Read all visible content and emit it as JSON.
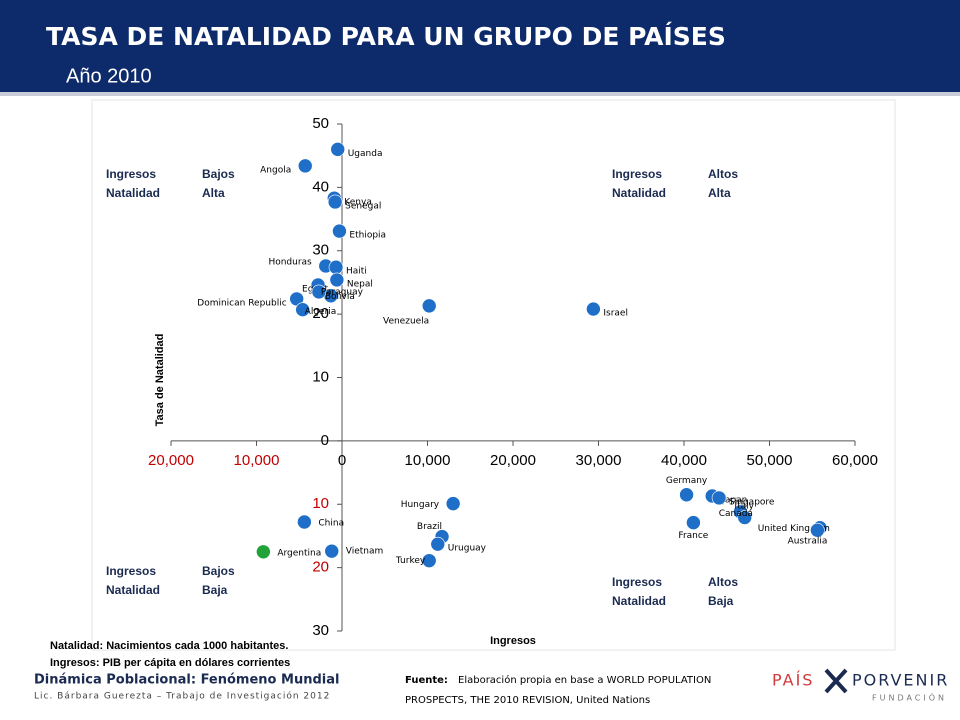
{
  "header": {
    "title": "TASA DE NATALIDAD PARA UN GRUPO DE PAÍSES",
    "subtitle": "Año 2010"
  },
  "chart_data": {
    "type": "scatter",
    "xlabel": "Ingresos",
    "ylabel": "Tasa de Natalidad",
    "xlim": [
      -20000,
      60000
    ],
    "ylim": [
      -30,
      50
    ],
    "xticks": [
      {
        "value": -20000,
        "label": "20,000",
        "color": "#c00000"
      },
      {
        "value": -10000,
        "label": "10,000",
        "color": "#c00000"
      },
      0,
      {
        "value": 10000,
        "label": "10,000"
      },
      {
        "value": 20000,
        "label": "20,000"
      },
      {
        "value": 30000,
        "label": "30,000"
      },
      {
        "value": 40000,
        "label": "40,000"
      },
      {
        "value": 50000,
        "label": "50,000"
      },
      {
        "value": 60000,
        "label": "60,000"
      }
    ],
    "yticks": [
      {
        "value": -30,
        "label": "30"
      },
      {
        "value": -20,
        "label": "20",
        "color": "#c00000"
      },
      {
        "value": -10,
        "label": "10",
        "color": "#c00000"
      },
      0,
      10,
      20,
      30,
      40,
      50
    ],
    "color": "#1f6fc8",
    "points": [
      {
        "name": "Uganda",
        "x": -500,
        "y": 46
      },
      {
        "name": "Angola",
        "x": -4300,
        "y": 43.4
      },
      {
        "name": "Kenya",
        "x": -900,
        "y": 38.3
      },
      {
        "name": "Senegal",
        "x": -800,
        "y": 37.7
      },
      {
        "name": "Ethiopia",
        "x": -300,
        "y": 33.1
      },
      {
        "name": "Honduras",
        "x": -1900,
        "y": 27.6
      },
      {
        "name": "Haiti",
        "x": -700,
        "y": 27.4
      },
      {
        "name": "Nepal",
        "x": -600,
        "y": 25.4
      },
      {
        "name": "Egypt",
        "x": -2800,
        "y": 24.6
      },
      {
        "name": "Bolivia",
        "x": -1300,
        "y": 22.9
      },
      {
        "name": "Paraguay",
        "x": -2700,
        "y": 23.5
      },
      {
        "name": "Dominican Republic",
        "x": -5300,
        "y": 22.4
      },
      {
        "name": "Algeria",
        "x": -4600,
        "y": 20.7
      },
      {
        "name": "Venezuela",
        "x": 10200,
        "y": 21.3
      },
      {
        "name": "Israel",
        "x": 29400,
        "y": 20.8
      },
      {
        "name": "Hungary",
        "x": 13000,
        "y": -9.9
      },
      {
        "name": "China",
        "x": -4400,
        "y": -12.8
      },
      {
        "name": "Argentina",
        "x": -9200,
        "y": -17.5,
        "color": "#22a33a"
      },
      {
        "name": "Vietnam",
        "x": -1200,
        "y": -17.4
      },
      {
        "name": "Brazil",
        "x": 11700,
        "y": -15.1
      },
      {
        "name": "Uruguay",
        "x": 11200,
        "y": -16.3
      },
      {
        "name": "Turkey",
        "x": 10200,
        "y": -18.9
      },
      {
        "name": "Germany",
        "x": 40300,
        "y": -8.5
      },
      {
        "name": "Japan",
        "x": 43300,
        "y": -8.7
      },
      {
        "name": "Singapore",
        "x": 44100,
        "y": -9
      },
      {
        "name": "Italy",
        "x": 46600,
        "y": -11.2
      },
      {
        "name": "Canada",
        "x": 47100,
        "y": -12.1
      },
      {
        "name": "France",
        "x": 41100,
        "y": -12.9
      },
      {
        "name": "United Kingdom",
        "x": 55900,
        "y": -13.7
      },
      {
        "name": "Australia",
        "x": 55600,
        "y": -14.1
      }
    ],
    "quadrants": [
      [
        [
          "Ingresos",
          "Bajos"
        ],
        [
          "Natalidad",
          "Alta"
        ]
      ],
      [
        [
          "Ingresos",
          "Altos"
        ],
        [
          "Natalidad",
          "Alta"
        ]
      ],
      [
        [
          "Ingresos",
          "Bajos"
        ],
        [
          "Natalidad",
          "Baja"
        ]
      ],
      [
        [
          "Ingresos",
          "Altos"
        ],
        [
          "Natalidad",
          "Baja"
        ]
      ]
    ],
    "notes": [
      "Natalidad: Nacimientos cada 1000 habitantes.",
      "Ingresos: PIB per cápita en dólares corrientes"
    ]
  },
  "footer": {
    "title": "Dinámica Poblacional: Fenómeno Mundial",
    "author": "Lic. Bárbara Guerezta – Trabajo de Investigación 2012",
    "source_label": "Fuente:",
    "source_line1": "Elaboración propia en base a WORLD POPULATION",
    "source_line2": "PROSPECTS, THE 2010 REVISION, United Nations",
    "logo": {
      "left": "PAÍS",
      "right": "PORVENIR",
      "sub": "FUNDACIÓN"
    }
  }
}
